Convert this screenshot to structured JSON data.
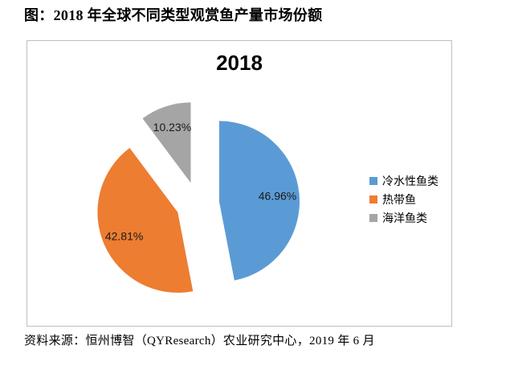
{
  "figure": {
    "title": "图：2018 年全球不同类型观赏鱼产量市场份额",
    "source_note": "资料来源：恒州博智（QYResearch）农业研究中心，2019 年 6 月"
  },
  "chart_data": {
    "type": "pie",
    "title": "2018",
    "categories": [
      "冷水性鱼类",
      "热带鱼",
      "海洋鱼类"
    ],
    "values": [
      46.96,
      42.81,
      10.23
    ],
    "data_labels": [
      "46.96%",
      "42.81%",
      "10.23%"
    ],
    "colors": [
      "#5B9BD5",
      "#ED7D31",
      "#A5A5A5"
    ],
    "legend_position": "right",
    "style": {
      "exploded": true,
      "start_angle_deg": 0,
      "direction": "clockwise",
      "label_color": "#1a1a1a",
      "frame_border_color": "#BFBFBF",
      "title_color": "#000000"
    }
  }
}
